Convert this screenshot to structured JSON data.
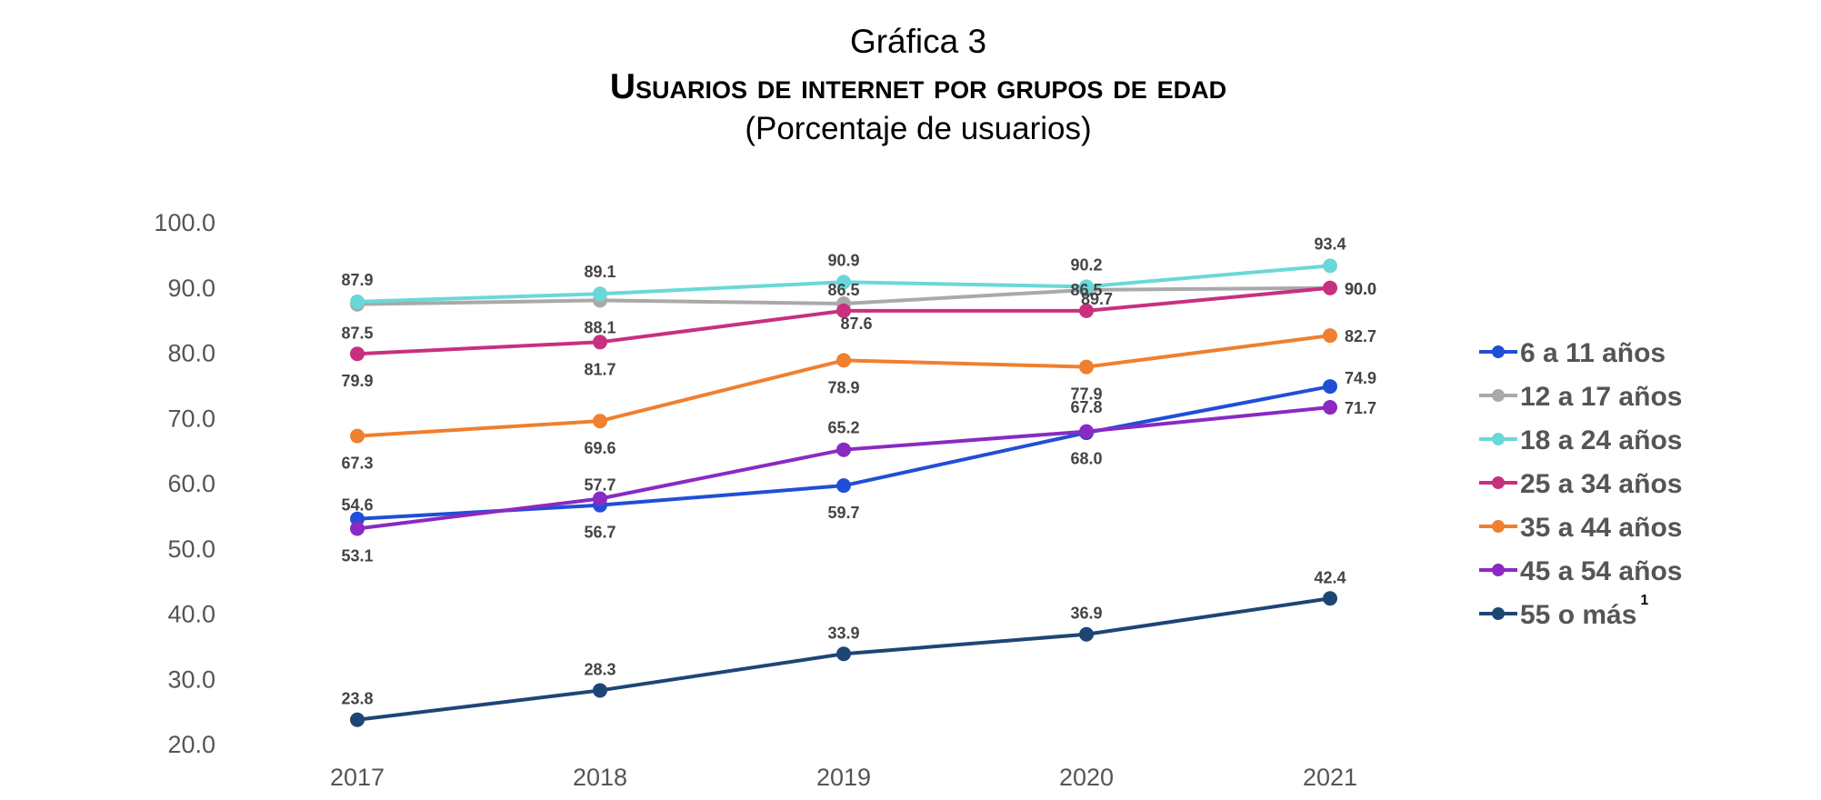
{
  "chart_data": {
    "type": "line",
    "title": "Gráfica 3",
    "subtitle": "Usuarios de internet por grupos de edad",
    "subtitle2": "(Porcentaje de usuarios)",
    "xlabel": "",
    "ylabel": "",
    "x": [
      "2017",
      "2018",
      "2019",
      "2020",
      "2021"
    ],
    "ylim": [
      20,
      100
    ],
    "yticks": [
      "100.0",
      "90.0",
      "80.0",
      "70.0",
      "60.0",
      "50.0",
      "40.0",
      "30.0",
      "20.0"
    ],
    "grid": false,
    "legend_position": "right",
    "series": [
      {
        "name": "6 a 11 años",
        "color": "#1f4fd6",
        "values": [
          54.6,
          56.7,
          59.7,
          67.8,
          74.9
        ]
      },
      {
        "name": "12 a 17 años",
        "color": "#a9a9a9",
        "values": [
          87.5,
          88.1,
          87.6,
          89.7,
          90.0
        ]
      },
      {
        "name": "18 a 24 años",
        "color": "#6ad8d8",
        "values": [
          87.9,
          89.1,
          90.9,
          90.2,
          93.4
        ]
      },
      {
        "name": "25 a 34 años",
        "color": "#c8307f",
        "values": [
          79.9,
          81.7,
          86.5,
          86.5,
          90.0
        ]
      },
      {
        "name": "35 a 44 años",
        "color": "#f07f2f",
        "values": [
          67.3,
          69.6,
          78.9,
          77.9,
          82.7
        ]
      },
      {
        "name": "45 a 54 años",
        "color": "#8a2ac2",
        "values": [
          53.1,
          57.7,
          65.2,
          68.0,
          71.7
        ]
      },
      {
        "name": "55 o más",
        "color": "#1d4675",
        "values": [
          23.8,
          28.3,
          33.9,
          36.9,
          42.4
        ],
        "superscript": "1"
      }
    ]
  }
}
